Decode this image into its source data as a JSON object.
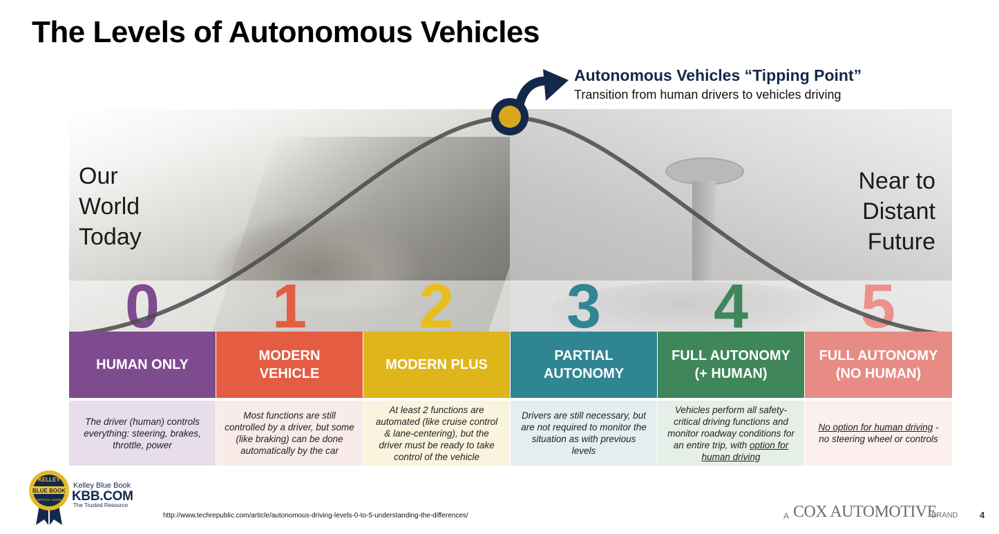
{
  "title": "The Levels of Autonomous Vehicles",
  "tipping_point": {
    "title": "Autonomous Vehicles “Tipping Point”",
    "subtitle": "Transition from human drivers to vehicles driving"
  },
  "left_label": "Our\nWorld\nToday",
  "right_label": "Near to\nDistant\nFuture",
  "levels": [
    {
      "number": "0",
      "title_lines": [
        "HUMAN ONLY"
      ],
      "color": "#7e4b8f",
      "num_color": "#7e4b8f",
      "desc_bg": "#e7ddeb",
      "desc_parts": [
        {
          "text": "The driver (human) controls everything: steering, brakes, throttle, power",
          "underline": false
        }
      ]
    },
    {
      "number": "1",
      "title_lines": [
        "MODERN",
        "VEHICLE"
      ],
      "color": "#e45d43",
      "num_color": "#e45d43",
      "desc_bg": "#f9ebe7",
      "desc_parts": [
        {
          "text": "Most functions are still controlled by a driver, but some (like braking) can be done automatically by the car",
          "underline": false
        }
      ]
    },
    {
      "number": "2",
      "title_lines": [
        "MODERN PLUS"
      ],
      "color": "#dfb51c",
      "num_color": "#e8bd1e",
      "desc_bg": "#faf4df",
      "desc_parts": [
        {
          "text": "At least 2 functions are automated (like cruise control & lane-centering), but the driver must be ready to take control of the vehicle",
          "underline": false
        }
      ]
    },
    {
      "number": "3",
      "title_lines": [
        "PARTIAL",
        "AUTONOMY"
      ],
      "color": "#2f8692",
      "num_color": "#2f8692",
      "desc_bg": "#e2eef0",
      "desc_parts": [
        {
          "text": "Drivers are still necessary, but are not required to monitor the situation as with previous levels",
          "underline": false
        }
      ]
    },
    {
      "number": "4",
      "title_lines": [
        "FULL AUTONOMY",
        "(+ HUMAN)"
      ],
      "color": "#3f865a",
      "num_color": "#3f865a",
      "desc_bg": "#e5efe8",
      "desc_parts": [
        {
          "text": "Vehicles perform all safety-critical driving functions and monitor roadway conditions for an entire trip, with ",
          "underline": false
        },
        {
          "text": "option for human driving",
          "underline": true
        }
      ]
    },
    {
      "number": "5",
      "title_lines": [
        "FULL AUTONOMY",
        "(NO HUMAN)"
      ],
      "color": "#e88b84",
      "num_color": "#ec908a",
      "desc_bg": "#fcefee",
      "desc_parts": [
        {
          "text": "No option for human driving",
          "underline": true
        },
        {
          "text": " - no steering wheel or controls",
          "underline": false
        }
      ]
    }
  ],
  "brand": {
    "kbb_small": "Kelley Blue Book",
    "kbb_big": "KBB.COM",
    "kbb_tagline": "The Trusted Resource",
    "badge_top": "KELLEY",
    "badge_mid": "BLUE BOOK",
    "badge_bottom": "OFFICIAL GUIDE"
  },
  "source_url": "http://www.techrepublic.com/article/autonomous-driving-levels-0-to-5-understanding-the-differences/",
  "footer": {
    "cox_prefix": "A",
    "cox_name": "COX AUTOMOTIVE",
    "cox_suffix": "BRAND",
    "page_number": "4"
  },
  "colors": {
    "navy": "#13294b",
    "gold": "#d9a71f",
    "curve": "#4a4a4a"
  }
}
